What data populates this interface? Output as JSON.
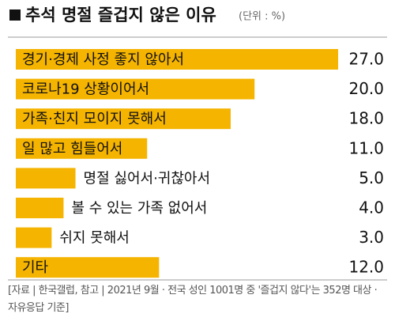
{
  "chart_data": {
    "type": "hbar",
    "title": "추석 명절 즐겁지 않은 이유",
    "unit": "(단위 : %)",
    "categories": [
      "경기·경제 사정 좋지 않아서",
      "코로나19 상황이어서",
      "가족·친지 모이지 못해서",
      "일 많고 힘들어서",
      "명절 싫어서·귀찮아서",
      "볼 수 있는 가족 없어서",
      "쉬지 못해서",
      "기타"
    ],
    "values": [
      27,
      20,
      18,
      11,
      5,
      4,
      3,
      12
    ],
    "value_labels": [
      "27.0",
      "20.0",
      "18.0",
      "11.0",
      "5.0",
      "4.0",
      "3.0",
      "12.0"
    ],
    "color": "#f5b400",
    "source": "[자료 | 한국갤럽, 참고 | 2021년 9월 · 전국 성인 1001명 중 '즐겁지 않다'는 352명 대상 · 자유응답 기준]"
  }
}
